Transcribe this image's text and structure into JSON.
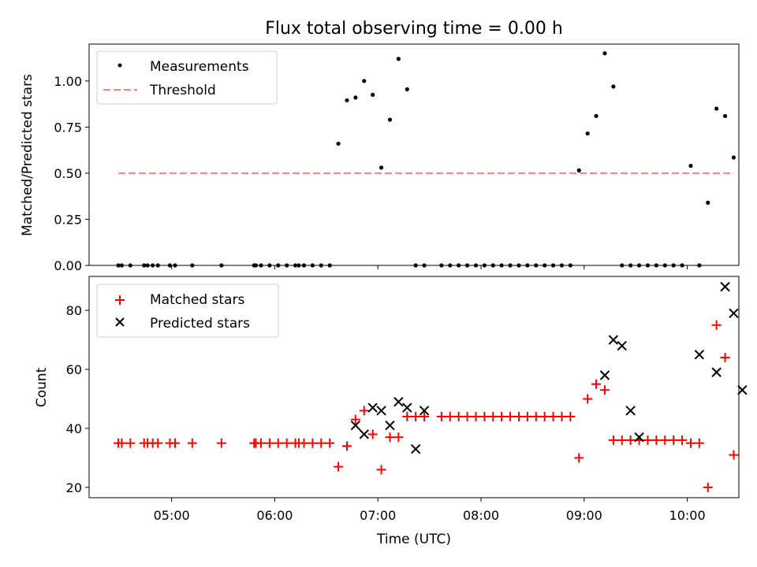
{
  "chart_data": [
    {
      "type": "scatter",
      "title": "Flux total observing time = 0.00 h",
      "xlabel": "",
      "ylabel": "Matched/Predicted stars",
      "ylim": [
        0,
        1.2
      ],
      "xlim": [
        "04:12",
        "10:30"
      ],
      "x_ticks": [
        "05:00",
        "06:00",
        "07:00",
        "08:00",
        "09:00",
        "10:00"
      ],
      "y_ticks": [
        "0.00",
        "0.25",
        "0.50",
        "0.75",
        "1.00"
      ],
      "legend": {
        "placement": "top-left",
        "entries": [
          "Measurements",
          "Threshold"
        ]
      },
      "series": [
        {
          "name": "Measurements",
          "marker": "dot",
          "color": "#000000",
          "x": [
            "04:29",
            "04:31",
            "04:36",
            "04:44",
            "04:46",
            "04:49",
            "04:52",
            "04:59",
            "05:02",
            "05:12",
            "05:29",
            "05:48",
            "05:49",
            "05:52",
            "05:57",
            "06:02",
            "06:07",
            "06:12",
            "06:14",
            "06:17",
            "06:22",
            "06:27",
            "06:32",
            "06:37",
            "06:42",
            "06:47",
            "06:52",
            "06:57",
            "07:02",
            "07:07",
            "07:12",
            "07:17",
            "07:22",
            "07:27",
            "07:37",
            "07:42",
            "07:47",
            "07:52",
            "07:57",
            "08:02",
            "08:07",
            "08:12",
            "08:17",
            "08:22",
            "08:27",
            "08:32",
            "08:37",
            "08:42",
            "08:47",
            "08:52",
            "08:57",
            "09:02",
            "09:07",
            "09:12",
            "09:17",
            "09:22",
            "09:27",
            "09:32",
            "09:37",
            "09:42",
            "09:47",
            "09:52",
            "09:57",
            "10:02",
            "10:07",
            "10:12",
            "10:17",
            "10:22",
            "10:27"
          ],
          "y": [
            0,
            0,
            0,
            0,
            0,
            0,
            0,
            0,
            0,
            0,
            0,
            0,
            0,
            0,
            0,
            0,
            0,
            0,
            0,
            0,
            0,
            0,
            0,
            0.66,
            0.895,
            0.91,
            1.0,
            0.925,
            0.53,
            0.79,
            1.12,
            0.955,
            0,
            0,
            0,
            0,
            0,
            0,
            0,
            0,
            0,
            0,
            0,
            0,
            0,
            0,
            0,
            0,
            0,
            0,
            0.515,
            0.715,
            0.81,
            1.15,
            0.97,
            0,
            0,
            0,
            0,
            0,
            0,
            0,
            0,
            0.54,
            0,
            0.34,
            0.85,
            0.81,
            0.585
          ]
        },
        {
          "name": "Threshold",
          "line_style": "dashed",
          "color": "#ff7f7f",
          "x": [
            "04:29",
            "10:27"
          ],
          "y": [
            0.5,
            0.5
          ]
        }
      ]
    },
    {
      "type": "scatter",
      "title": "",
      "xlabel": "Time (UTC)",
      "ylabel": "Count",
      "ylim": [
        16.5,
        91.5
      ],
      "xlim": [
        "04:12",
        "10:30"
      ],
      "x_ticks": [
        "05:00",
        "06:00",
        "07:00",
        "08:00",
        "09:00",
        "10:00"
      ],
      "y_ticks": [
        "20",
        "40",
        "60",
        "80"
      ],
      "legend": {
        "placement": "top-left",
        "entries": [
          "Matched stars",
          "Predicted stars"
        ]
      },
      "series": [
        {
          "name": "Matched stars",
          "marker": "plus",
          "color": "#ff0000",
          "x": [
            "04:29",
            "04:31",
            "04:36",
            "04:44",
            "04:46",
            "04:49",
            "04:52",
            "04:59",
            "05:02",
            "05:12",
            "05:29",
            "05:48",
            "05:49",
            "05:52",
            "05:57",
            "06:02",
            "06:07",
            "06:12",
            "06:14",
            "06:17",
            "06:22",
            "06:27",
            "06:32",
            "06:37",
            "06:42",
            "06:47",
            "06:52",
            "06:57",
            "07:02",
            "07:07",
            "07:12",
            "07:17",
            "07:22",
            "07:27",
            "07:37",
            "07:42",
            "07:47",
            "07:52",
            "07:57",
            "08:02",
            "08:07",
            "08:12",
            "08:17",
            "08:22",
            "08:27",
            "08:32",
            "08:37",
            "08:42",
            "08:47",
            "08:52",
            "08:57",
            "09:02",
            "09:07",
            "09:12",
            "09:17",
            "09:22",
            "09:27",
            "09:32",
            "09:37",
            "09:42",
            "09:47",
            "09:52",
            "09:57",
            "10:02",
            "10:07",
            "10:12",
            "10:17",
            "10:22",
            "10:27"
          ],
          "y": [
            35,
            35,
            35,
            35,
            35,
            35,
            35,
            35,
            35,
            35,
            35,
            35,
            35,
            35,
            35,
            35,
            35,
            35,
            35,
            35,
            35,
            35,
            35,
            27,
            34,
            43,
            46,
            38,
            26,
            37,
            37,
            44,
            44,
            44,
            44,
            44,
            44,
            44,
            44,
            44,
            44,
            44,
            44,
            44,
            44,
            44,
            44,
            44,
            44,
            44,
            30,
            50,
            55,
            53,
            36,
            36,
            36,
            36,
            36,
            36,
            36,
            36,
            36,
            35,
            35,
            20,
            75,
            64,
            31
          ]
        },
        {
          "name": "Predicted stars",
          "marker": "x",
          "color": "#000000",
          "x": [
            "06:47",
            "06:52",
            "06:57",
            "07:02",
            "07:07",
            "07:12",
            "07:17",
            "07:22",
            "07:27",
            "09:12",
            "09:17",
            "09:22",
            "09:27",
            "09:32",
            "10:07",
            "10:17",
            "10:22",
            "10:27",
            "10:32"
          ],
          "y": [
            41,
            38,
            47,
            46,
            41,
            49,
            47,
            33,
            46,
            58,
            70,
            68,
            46,
            37,
            65,
            59,
            88,
            79,
            53
          ]
        }
      ]
    }
  ]
}
